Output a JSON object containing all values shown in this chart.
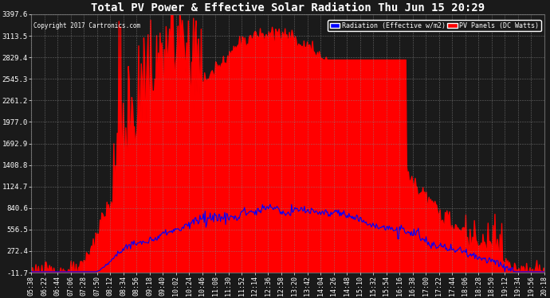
{
  "title": "Total PV Power & Effective Solar Radiation Thu Jun 15 20:29",
  "copyright": "Copyright 2017 Cartronics.com",
  "legend_blue": "Radiation (Effective w/m2)",
  "legend_red": "PV Panels (DC Watts)",
  "ylim": [
    -11.7,
    3397.6
  ],
  "yticks": [
    -11.7,
    272.4,
    556.5,
    840.6,
    1124.7,
    1408.8,
    1692.9,
    1977.0,
    2261.2,
    2545.3,
    2829.4,
    3113.5,
    3397.6
  ],
  "bg_color": "#1a1a1a",
  "plot_bg_color": "#1a1a1a",
  "grid_color": "#888888",
  "red_color": "#FF0000",
  "blue_color": "#0000FF",
  "title_color": "#FFFFFF",
  "tick_color": "#FFFFFF",
  "x_tick_labels": [
    "05:38",
    "06:22",
    "06:44",
    "07:06",
    "07:28",
    "07:50",
    "08:12",
    "08:34",
    "08:56",
    "09:18",
    "09:40",
    "10:02",
    "10:24",
    "10:46",
    "11:08",
    "11:30",
    "11:52",
    "12:14",
    "12:36",
    "12:58",
    "13:20",
    "13:42",
    "14:04",
    "14:26",
    "14:48",
    "15:10",
    "15:32",
    "15:54",
    "16:16",
    "16:38",
    "17:00",
    "17:22",
    "17:44",
    "18:06",
    "18:28",
    "18:50",
    "19:12",
    "19:34",
    "19:56",
    "20:18"
  ]
}
